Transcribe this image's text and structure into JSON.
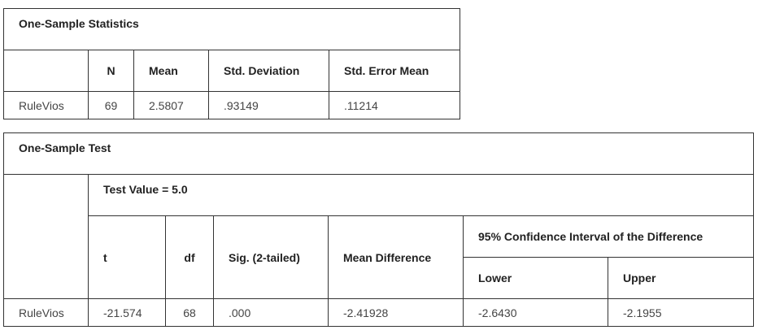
{
  "stats_table": {
    "title": "One-Sample Statistics",
    "headers": [
      "N",
      "Mean",
      "Std. Deviation",
      "Std. Error Mean"
    ],
    "row": {
      "label": "RuleVios",
      "n": "69",
      "mean": "2.5807",
      "std_deviation": ".93149",
      "std_error_mean": ".11214"
    }
  },
  "test_table": {
    "title": "One-Sample Test",
    "test_value": "Test Value = 5.0",
    "headers": {
      "t": "t",
      "df": "df",
      "sig": "Sig. (2-tailed)",
      "mean_difference": "Mean Difference",
      "ci": "95% Confidence Interval of the Difference",
      "lower": "Lower",
      "upper": "Upper"
    },
    "row": {
      "label": "RuleVios",
      "t": "-21.574",
      "df": "68",
      "sig": ".000",
      "mean_difference": "-2.41928",
      "lower": "-2.6430",
      "upper": "-2.1955"
    }
  }
}
